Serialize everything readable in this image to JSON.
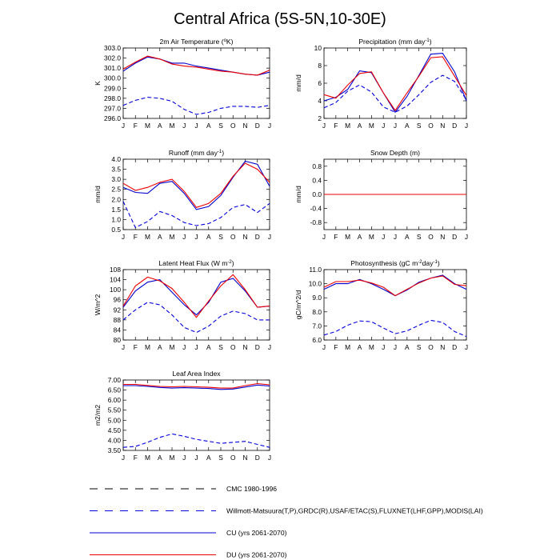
{
  "title": "Central Africa (5S-5N,10-30E)",
  "months": [
    "J",
    "F",
    "M",
    "A",
    "M",
    "J",
    "J",
    "A",
    "S",
    "O",
    "N",
    "D",
    "J"
  ],
  "colors": {
    "cmc": "#000000",
    "obs": "#0000dd",
    "cu": "#0000cc",
    "du": "#ee0000"
  },
  "legend": [
    {
      "key": "cmc",
      "label": "CMC 1980-1996",
      "style": "dashed"
    },
    {
      "key": "obs",
      "label": "Willmott-Matsuura(T,P),GRDC(R),USAF/ETAC(S),FLUXNET(LHF,GPP),MODIS(LAI)",
      "style": "dashed"
    },
    {
      "key": "cu",
      "label": "CU (yrs 2061-2070)",
      "style": "solid"
    },
    {
      "key": "du",
      "label": "DU (yrs 2061-2070)",
      "style": "solid"
    }
  ],
  "chart_data": [
    {
      "type": "line",
      "title_main": "2m Air Temperature (",
      "title_sup": "o",
      "title_post": "K)",
      "ylabel": "K",
      "ylim": [
        296.0,
        303.0
      ],
      "yticks": [
        "296.0",
        "297.0",
        "298.0",
        "299.0",
        "300.0",
        "301.0",
        "302.0",
        "303.0"
      ],
      "series": [
        {
          "key": "obs",
          "style": "dashed",
          "values": [
            297.3,
            297.8,
            298.1,
            298.0,
            297.7,
            296.9,
            296.4,
            296.6,
            297.0,
            297.2,
            297.2,
            297.1,
            297.3
          ]
        },
        {
          "key": "cu",
          "style": "solid",
          "values": [
            300.7,
            301.5,
            302.1,
            301.9,
            301.5,
            301.5,
            301.2,
            301.0,
            300.8,
            300.6,
            300.4,
            300.3,
            300.6
          ]
        },
        {
          "key": "du",
          "style": "solid",
          "values": [
            300.9,
            301.6,
            302.2,
            301.9,
            301.4,
            301.2,
            301.1,
            300.9,
            300.7,
            300.6,
            300.4,
            300.3,
            300.8
          ]
        }
      ]
    },
    {
      "type": "line",
      "title_main": "Precipitation (mm day",
      "title_sup": "-1",
      "title_post": ")",
      "ylabel": "mm/d",
      "ylim": [
        2,
        10
      ],
      "yticks": [
        "2",
        "4",
        "6",
        "8",
        "10"
      ],
      "series": [
        {
          "key": "obs",
          "style": "dashed",
          "values": [
            3.2,
            3.8,
            5.1,
            5.8,
            5.0,
            3.3,
            2.7,
            3.4,
            4.7,
            6.1,
            6.9,
            6.2,
            4.1
          ]
        },
        {
          "key": "cu",
          "style": "solid",
          "values": [
            4.0,
            4.4,
            5.3,
            7.4,
            7.2,
            4.9,
            2.7,
            4.5,
            6.9,
            9.3,
            9.4,
            7.3,
            4.0
          ]
        },
        {
          "key": "du",
          "style": "solid",
          "values": [
            4.7,
            4.3,
            5.8,
            7.1,
            7.3,
            4.9,
            2.9,
            4.9,
            6.8,
            8.9,
            9.0,
            6.8,
            4.6
          ]
        }
      ]
    },
    {
      "type": "line",
      "title_main": "Runoff (mm day",
      "title_sup": "-1",
      "title_post": ")",
      "ylabel": "mm/d",
      "ylim": [
        0.5,
        4.0
      ],
      "yticks": [
        "0.5",
        "1.0",
        "1.5",
        "2.0",
        "2.5",
        "3.0",
        "3.5",
        "4.0"
      ],
      "series": [
        {
          "key": "obs",
          "style": "dashed",
          "values": [
            1.9,
            0.6,
            0.9,
            1.4,
            1.2,
            0.85,
            0.7,
            0.8,
            1.1,
            1.6,
            1.75,
            1.35,
            1.8
          ]
        },
        {
          "key": "cu",
          "style": "solid",
          "values": [
            2.6,
            2.35,
            2.3,
            2.8,
            2.9,
            2.3,
            1.5,
            1.65,
            2.2,
            3.1,
            3.9,
            3.75,
            2.65
          ]
        },
        {
          "key": "du",
          "style": "solid",
          "values": [
            2.8,
            2.45,
            2.6,
            2.85,
            3.0,
            2.4,
            1.6,
            1.8,
            2.3,
            3.15,
            3.8,
            3.5,
            2.85
          ]
        }
      ]
    },
    {
      "type": "line",
      "title_main": "Snow Depth (m)",
      "title_sup": "",
      "title_post": "",
      "ylabel": "mm/d",
      "ylim": [
        -1.0,
        1.0
      ],
      "yticks": [
        "-0.8",
        "-0.4",
        "0.0",
        "0.4",
        "0.8"
      ],
      "ytickvals": [
        -0.8,
        -0.4,
        0.0,
        0.4,
        0.8
      ],
      "series": [
        {
          "key": "obs",
          "style": "dashed",
          "values": [
            0,
            0,
            0,
            0,
            0,
            0,
            0,
            0,
            0,
            0,
            0,
            0,
            0
          ]
        },
        {
          "key": "cu",
          "style": "solid",
          "values": [
            0,
            0,
            0,
            0,
            0,
            0,
            0,
            0,
            0,
            0,
            0,
            0,
            0
          ]
        },
        {
          "key": "du",
          "style": "solid",
          "values": [
            0,
            0,
            0,
            0,
            0,
            0,
            0,
            0,
            0,
            0,
            0,
            0,
            0
          ]
        }
      ]
    },
    {
      "type": "line",
      "title_main": "Latent Heat Flux (W m",
      "title_sup": "-2",
      "title_post": ")",
      "ylabel": "W/m^2",
      "ylim": [
        80,
        108
      ],
      "yticks": [
        "80",
        "84",
        "88",
        "92",
        "96",
        "100",
        "104",
        "108"
      ],
      "series": [
        {
          "key": "obs",
          "style": "dashed",
          "values": [
            88,
            92,
            95,
            94,
            90,
            85,
            83,
            85.5,
            89.5,
            91.5,
            90.5,
            88,
            88
          ]
        },
        {
          "key": "cu",
          "style": "solid",
          "values": [
            93,
            99.5,
            103,
            104,
            99,
            94,
            90,
            95,
            103,
            104.5,
            99.5,
            93,
            93.5
          ]
        },
        {
          "key": "du",
          "style": "solid",
          "values": [
            93.5,
            101.5,
            105,
            103.5,
            100.5,
            95,
            89,
            95.5,
            101.5,
            106,
            100,
            93,
            93.5
          ]
        }
      ]
    },
    {
      "type": "line",
      "title_main": "Photosynthesis (gC m",
      "title_sup": "-2",
      "title_post": "day",
      "title_sup2": "-1",
      "title_post2": ")",
      "ylabel": "gC/m^2/d",
      "ylim": [
        6.0,
        11.0
      ],
      "yticks": [
        "6.0",
        "7.0",
        "8.0",
        "9.0",
        "10.0",
        "11.0"
      ],
      "series": [
        {
          "key": "obs",
          "style": "dashed",
          "values": [
            6.35,
            6.6,
            7.05,
            7.35,
            7.3,
            6.85,
            6.45,
            6.65,
            7.05,
            7.4,
            7.25,
            6.6,
            6.25
          ]
        },
        {
          "key": "cu",
          "style": "solid",
          "values": [
            9.6,
            10.0,
            10.0,
            10.3,
            10.0,
            9.6,
            9.15,
            9.55,
            10.1,
            10.4,
            10.6,
            10.0,
            9.6
          ]
        },
        {
          "key": "du",
          "style": "solid",
          "values": [
            9.75,
            10.15,
            10.15,
            10.25,
            10.05,
            9.75,
            9.15,
            9.6,
            10.05,
            10.4,
            10.55,
            9.95,
            9.85
          ]
        }
      ]
    },
    {
      "type": "line",
      "title_main": "Leaf Area Index",
      "title_sup": "",
      "title_post": "",
      "ylabel": "m2/m2",
      "ylim": [
        3.5,
        7.0
      ],
      "yticks": [
        "3.50",
        "4.00",
        "4.50",
        "5.00",
        "5.50",
        "6.00",
        "6.50",
        "7.00"
      ],
      "series": [
        {
          "key": "obs",
          "style": "dashed",
          "values": [
            3.65,
            3.7,
            3.9,
            4.15,
            4.32,
            4.2,
            4.05,
            3.95,
            3.85,
            3.9,
            3.95,
            3.8,
            3.65
          ]
        },
        {
          "key": "cu",
          "style": "solid",
          "values": [
            6.72,
            6.72,
            6.68,
            6.63,
            6.6,
            6.62,
            6.6,
            6.58,
            6.53,
            6.55,
            6.65,
            6.75,
            6.7
          ]
        },
        {
          "key": "du",
          "style": "solid",
          "values": [
            6.78,
            6.78,
            6.73,
            6.68,
            6.66,
            6.68,
            6.66,
            6.64,
            6.6,
            6.6,
            6.72,
            6.82,
            6.76
          ]
        }
      ]
    }
  ]
}
